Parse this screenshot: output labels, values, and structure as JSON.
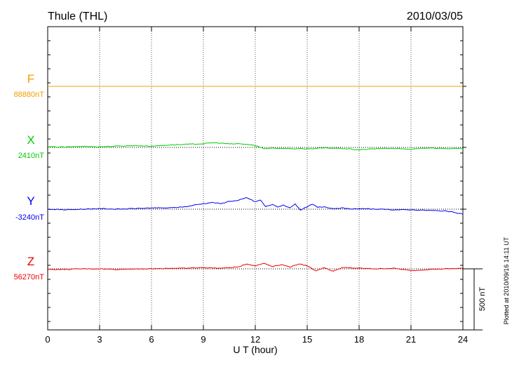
{
  "station": "Thule (THL)",
  "date": "2010/03/05",
  "plotted_note": "Plotted at 2010/09/16 14:11 UT",
  "scale_label": "500 nT",
  "chart_data": {
    "type": "line",
    "title": "Thule (THL)",
    "xlabel": "U T (hour)",
    "ylabel": "",
    "xlim": [
      0,
      24
    ],
    "x_ticks": [
      0,
      3,
      6,
      9,
      12,
      15,
      18,
      21,
      24
    ],
    "grid": true,
    "scale_bar_nT": 500,
    "series": [
      {
        "name": "F",
        "baseline_label": "88880nT",
        "baseline_nT": 88880,
        "color": "#f0a000",
        "x": [
          0,
          3,
          6,
          9,
          12,
          15,
          18,
          21,
          24
        ],
        "offset_nT": [
          0,
          0,
          0,
          0,
          0,
          0,
          0,
          0,
          0
        ]
      },
      {
        "name": "X",
        "baseline_label": "2410nT",
        "baseline_nT": 2410,
        "color": "#00cc00",
        "x": [
          0,
          1,
          2,
          3,
          4,
          5,
          6,
          7,
          8,
          9,
          9.5,
          10,
          10.5,
          11,
          11.5,
          12,
          12.5,
          13,
          14,
          15,
          16,
          17,
          18,
          19,
          20,
          21,
          22,
          23,
          24
        ],
        "offset_nT": [
          5,
          3,
          8,
          5,
          10,
          15,
          10,
          20,
          25,
          30,
          38,
          35,
          28,
          30,
          25,
          15,
          -10,
          -5,
          -10,
          -12,
          -5,
          -8,
          -20,
          -10,
          -8,
          -15,
          -5,
          -8,
          -10
        ]
      },
      {
        "name": "Y",
        "baseline_label": "-3240nT",
        "baseline_nT": -3240,
        "color": "#0000ee",
        "x": [
          0,
          1,
          2,
          3,
          4,
          5,
          6,
          7,
          8,
          8.5,
          9,
          9.5,
          10,
          10.5,
          11,
          11.5,
          12,
          12.3,
          12.6,
          13,
          13.3,
          13.6,
          14,
          14.3,
          14.6,
          15,
          15.3,
          15.6,
          16,
          16.5,
          17,
          17.5,
          18,
          19,
          20,
          21,
          22,
          23,
          24
        ],
        "offset_nT": [
          0,
          -5,
          0,
          5,
          0,
          5,
          10,
          10,
          20,
          35,
          45,
          55,
          45,
          65,
          70,
          95,
          60,
          75,
          20,
          40,
          15,
          35,
          10,
          45,
          -10,
          20,
          40,
          15,
          20,
          5,
          10,
          0,
          5,
          0,
          -5,
          -5,
          -10,
          -15,
          -40
        ]
      },
      {
        "name": "Z",
        "baseline_label": "56270nT",
        "baseline_nT": 56270,
        "color": "#ee0000",
        "x": [
          0,
          1,
          2,
          3,
          4,
          5,
          6,
          7,
          8,
          9,
          10,
          11,
          11.5,
          12,
          12.5,
          13,
          13.5,
          14,
          14.5,
          15,
          15.5,
          16,
          16.5,
          17,
          18,
          19,
          20,
          21,
          22,
          23,
          24
        ],
        "offset_nT": [
          -5,
          -5,
          0,
          0,
          -5,
          0,
          0,
          5,
          5,
          10,
          5,
          15,
          40,
          25,
          45,
          20,
          35,
          15,
          40,
          25,
          -15,
          10,
          -20,
          10,
          5,
          0,
          5,
          -15,
          -5,
          0,
          5
        ]
      }
    ]
  }
}
